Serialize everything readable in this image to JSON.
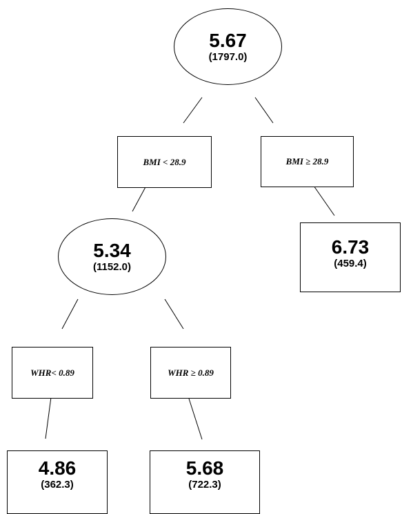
{
  "tree": {
    "root": {
      "value": "5.67",
      "count": "(1797.0)"
    },
    "split1_left": "BMI < 28.9",
    "split1_right": "BMI ≥ 28.9",
    "node_left": {
      "value": "5.34",
      "count": "(1152.0)"
    },
    "leaf_right": {
      "value": "6.73",
      "count": "(459.4)"
    },
    "split2_left": "WHR< 0.89",
    "split2_right": "WHR ≥ 0.89",
    "leaf_ll": {
      "value": "4.86",
      "count": "(362.3)"
    },
    "leaf_lr": {
      "value": "5.68",
      "count": "(722.3)"
    }
  }
}
